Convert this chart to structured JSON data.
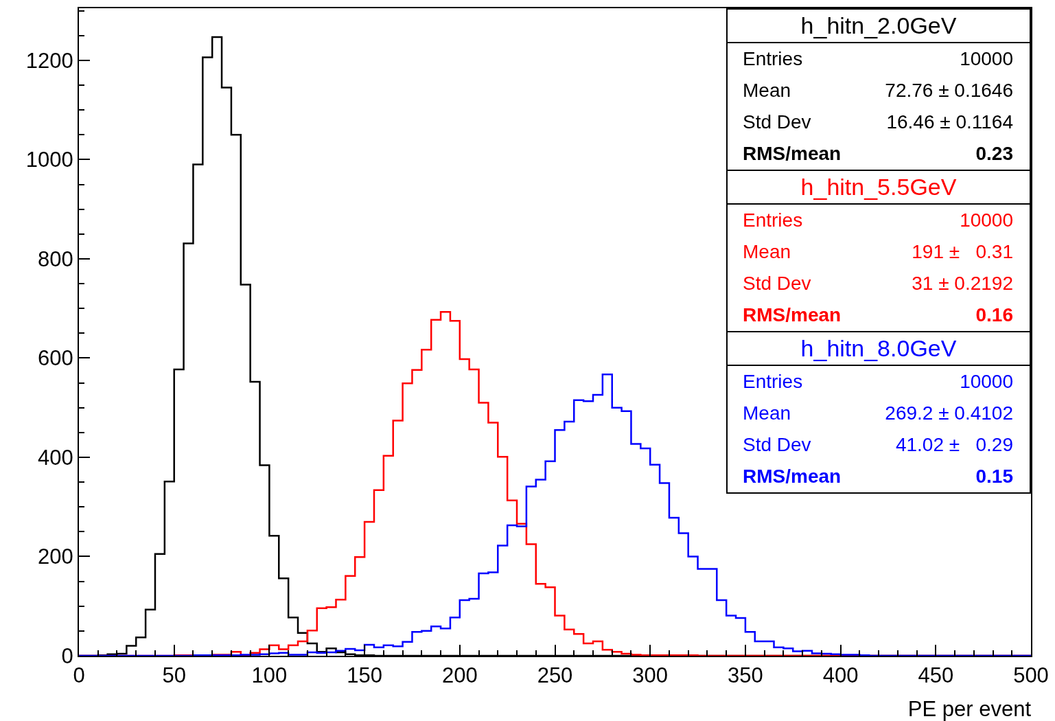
{
  "chart_data": {
    "type": "histogram",
    "xlabel": "PE per event",
    "bins": [
      0,
      5,
      10,
      15,
      20,
      25,
      30,
      35,
      40,
      45,
      50,
      55,
      60,
      65,
      70,
      75,
      80,
      85,
      90,
      95,
      100,
      105,
      110,
      115,
      120,
      125,
      130,
      135,
      140,
      145,
      150,
      155,
      160,
      165,
      170,
      175,
      180,
      185,
      190,
      195,
      200,
      205,
      210,
      215,
      220,
      225,
      230,
      235,
      240,
      245,
      250,
      255,
      260,
      265,
      270,
      275,
      280,
      285,
      290,
      295,
      300,
      305,
      310,
      315,
      320,
      325,
      330,
      335,
      340,
      345,
      350,
      355,
      360,
      365,
      370,
      375,
      380,
      385,
      390,
      395,
      400,
      405,
      410,
      415,
      420,
      425,
      430,
      435,
      440,
      445,
      450,
      455,
      460,
      465,
      470,
      475,
      480,
      485,
      490,
      495,
      500
    ],
    "series": [
      {
        "name": "h_hitn_2.0GeV",
        "color": "#000000",
        "values": [
          0,
          0,
          1,
          3,
          4,
          20,
          37,
          93,
          205,
          351,
          577,
          831,
          990,
          1206,
          1247,
          1145,
          1050,
          748,
          552,
          384,
          242,
          156,
          77,
          46,
          25,
          8,
          15,
          7,
          3,
          1,
          1,
          0,
          0,
          0,
          0,
          0,
          0,
          0,
          0,
          0,
          0,
          0,
          0,
          0,
          0,
          0,
          0,
          0,
          0,
          0,
          0,
          0,
          0,
          0,
          0,
          0,
          0,
          0,
          0,
          0,
          0,
          0,
          0,
          0,
          0,
          0,
          0,
          0,
          0,
          0,
          0,
          0,
          0,
          0,
          0,
          0,
          0,
          0,
          0,
          0,
          0,
          0,
          0,
          0,
          0,
          0,
          0,
          0,
          0,
          0,
          0,
          0,
          0,
          0,
          0,
          0,
          0,
          0,
          0,
          0
        ]
      },
      {
        "name": "h_hitn_5.5GeV",
        "color": "#ff0000",
        "values": [
          0,
          0,
          0,
          0,
          0,
          0,
          0,
          0,
          0,
          0,
          1,
          1,
          1,
          1,
          2,
          2,
          8,
          1,
          6,
          13,
          21,
          13,
          21,
          29,
          51,
          96,
          98,
          113,
          161,
          199,
          270,
          334,
          403,
          474,
          549,
          576,
          617,
          677,
          693,
          675,
          598,
          577,
          510,
          470,
          401,
          313,
          266,
          225,
          145,
          138,
          81,
          53,
          44,
          25,
          29,
          12,
          8,
          4,
          2,
          1,
          1,
          1,
          1,
          1,
          1,
          0,
          0,
          0,
          0,
          0,
          0,
          0,
          0,
          0,
          0,
          0,
          0,
          0,
          0,
          0,
          0,
          0,
          0,
          0,
          0,
          0,
          0,
          0,
          0,
          0,
          0,
          0,
          0,
          0,
          0,
          0,
          0,
          0,
          0,
          0
        ]
      },
      {
        "name": "h_hitn_8.0GeV",
        "color": "#0000ff",
        "values": [
          0,
          0,
          0,
          0,
          0,
          0,
          0,
          0,
          0,
          0,
          0,
          0,
          1,
          1,
          1,
          1,
          1,
          2,
          2,
          3,
          5,
          6,
          2,
          2,
          7,
          6,
          7,
          10,
          14,
          11,
          22,
          17,
          21,
          19,
          28,
          48,
          50,
          59,
          55,
          77,
          112,
          115,
          166,
          168,
          222,
          263,
          261,
          341,
          355,
          392,
          455,
          472,
          515,
          513,
          526,
          567,
          500,
          493,
          427,
          418,
          385,
          348,
          278,
          247,
          200,
          175,
          175,
          112,
          81,
          76,
          48,
          29,
          29,
          17,
          15,
          9,
          10,
          5,
          4,
          3,
          2,
          2,
          1,
          0,
          0,
          0,
          0,
          0,
          0,
          0,
          0,
          0,
          0,
          0,
          0,
          0,
          0,
          0,
          0,
          0
        ]
      }
    ],
    "annotations": [
      "Entries\t10000",
      "Mean\t72.76 ± 0.1646",
      "Std Dev\t16.46 ± 0.1164",
      "RMS/mean\t0.23",
      "Entries\t10000",
      "Mean\t191 ±   0.31",
      "Std Dev\t31 ± 0.2192",
      "RMS/mean\t0.16",
      "Entries\t10000",
      "Mean\t269.2 ± 0.4102",
      "Std Dev\t41.02 ±   0.29",
      "RMS/mean\t0.15"
    ],
    "xlim": [
      0,
      500
    ],
    "xticks": [
      0,
      50,
      100,
      150,
      200,
      250,
      300,
      350,
      400,
      450,
      500
    ],
    "ylim": [
      0,
      1305
    ],
    "yticks": [
      0,
      200,
      400,
      600,
      800,
      1000,
      1200
    ],
    "legend": "top right",
    "grid": false
  }
}
